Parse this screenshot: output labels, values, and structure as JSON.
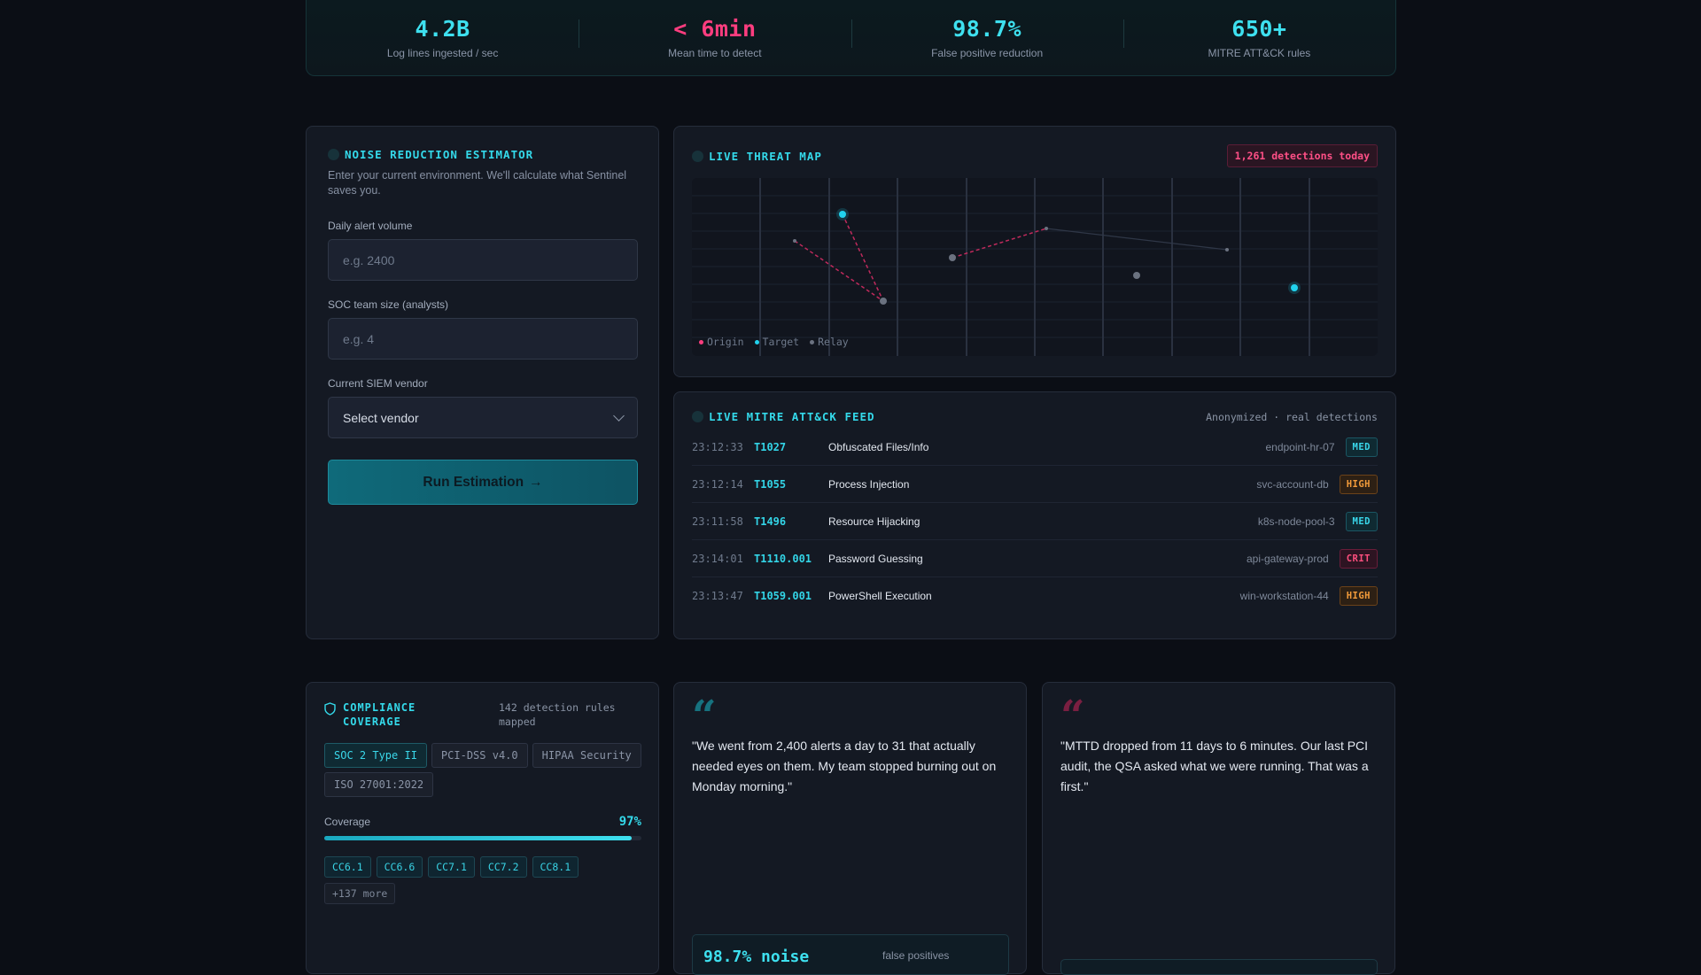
{
  "stats": [
    {
      "value": "4.2B",
      "label": "Log lines ingested / sec",
      "accent": "#3ee0ef"
    },
    {
      "value": "< 6min",
      "label": "Mean time to detect",
      "accent": "#ff3d7f"
    },
    {
      "value": "98.7%",
      "label": "False positive reduction",
      "accent": "#3ee0ef"
    },
    {
      "value": "650+",
      "label": "MITRE ATT&CK rules",
      "accent": "#3ee0ef"
    }
  ],
  "estimator": {
    "title": "NOISE REDUCTION ESTIMATOR",
    "description": "Enter your current environment. We'll calculate what Sentinel saves you.",
    "alert_volume_label": "Daily alert volume",
    "alert_volume_placeholder": "e.g. 2400",
    "team_size_label": "SOC team size (analysts)",
    "team_size_placeholder": "e.g. 4",
    "vendor_label": "Current SIEM vendor",
    "vendor_value": "Select vendor",
    "run_label": "Run Estimation",
    "run_arrow": "→"
  },
  "threat_map": {
    "title": "LIVE THREAT MAP",
    "badge": "1,261 detections today",
    "legend": [
      {
        "label": "Origin",
        "color": "#ff3d7f"
      },
      {
        "label": "Target",
        "color": "#22d3ee"
      },
      {
        "label": "Relay",
        "color": "#6b7280"
      }
    ]
  },
  "feed": {
    "title": "LIVE MITRE ATT&CK FEED",
    "subtitle": "Anonymized · real detections",
    "rows": [
      {
        "time": "23:12:33",
        "id": "T1027",
        "name": "Obfuscated Files/Info",
        "host": "endpoint-hr-07",
        "severity": "MED"
      },
      {
        "time": "23:12:14",
        "id": "T1055",
        "name": "Process Injection",
        "host": "svc-account-db",
        "severity": "HIGH"
      },
      {
        "time": "23:11:58",
        "id": "T1496",
        "name": "Resource Hijacking",
        "host": "k8s-node-pool-3",
        "severity": "MED"
      },
      {
        "time": "23:14:01",
        "id": "T1110.001",
        "name": "Password Guessing",
        "host": "api-gateway-prod",
        "severity": "CRIT"
      },
      {
        "time": "23:13:47",
        "id": "T1059.001",
        "name": "PowerShell Execution",
        "host": "win-workstation-44",
        "severity": "HIGH"
      }
    ]
  },
  "compliance": {
    "title": "COMPLIANCE COVERAGE",
    "rules": "142 detection rules mapped",
    "frameworks": [
      {
        "label": "SOC 2 Type II",
        "active": true
      },
      {
        "label": "PCI-DSS v4.0",
        "active": false
      },
      {
        "label": "HIPAA Security",
        "active": false
      },
      {
        "label": "ISO 27001:2022",
        "active": false
      }
    ],
    "coverage_label": "Coverage",
    "coverage_value": "97%",
    "coverage_fraction": 0.97,
    "controls": [
      "CC6.1",
      "CC6.6",
      "CC7.1",
      "CC7.2",
      "CC8.1"
    ],
    "more": "+137 more"
  },
  "testimonials": [
    {
      "quote_mark": "“",
      "text": "\"We went from 2,400 alerts a day to 31 that actually needed eyes on them. My team stopped burning out on Monday morning.\"",
      "metric": "98.7% noise",
      "metric_label": "false positives"
    },
    {
      "quote_mark": "“",
      "text": "\"MTTD dropped from 11 days to 6 minutes. Our last PCI audit, the QSA asked what we were running. That was a first.\""
    }
  ]
}
